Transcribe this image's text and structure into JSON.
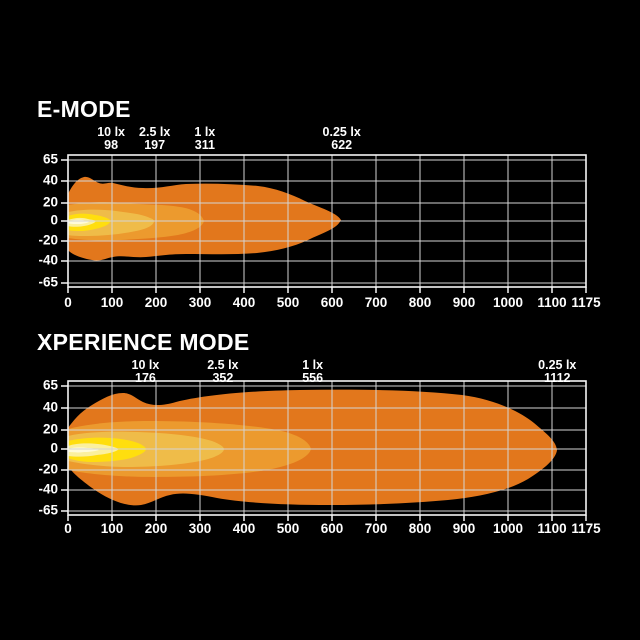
{
  "page": {
    "background": "#000000"
  },
  "palette": {
    "text": "#FFFFFF",
    "grid": "#D4D4D4",
    "frame": "#F5F5F5",
    "lux_0_25": "#E2771C",
    "lux_1": "#EC9A2E",
    "lux_2_5": "#EFBC49",
    "lux_10": "#FFDE0E",
    "core": "#FBF09E",
    "hotspot": "#FFFBD9"
  },
  "charts": [
    {
      "title": "E-MODE",
      "y_ticks": [
        65,
        40,
        20,
        0,
        -20,
        -40,
        -65
      ],
      "x_ticks": [
        0,
        100,
        200,
        300,
        400,
        500,
        600,
        700,
        800,
        900,
        1000,
        1100,
        1175
      ],
      "markers": [
        {
          "lux": "10 lx",
          "distance": 98
        },
        {
          "lux": "2.5 lx",
          "distance": 197
        },
        {
          "lux": "1 lx",
          "distance": 311
        },
        {
          "lux": "0.25 lx",
          "distance": 622
        }
      ]
    },
    {
      "title": "XPERIENCE MODE",
      "y_ticks": [
        65,
        40,
        20,
        0,
        -20,
        -40,
        -65
      ],
      "x_ticks": [
        0,
        100,
        200,
        300,
        400,
        500,
        600,
        700,
        800,
        900,
        1000,
        1100,
        1175
      ],
      "markers": [
        {
          "lux": "10 lx",
          "distance": 176
        },
        {
          "lux": "2.5 lx",
          "distance": 352
        },
        {
          "lux": "1 lx",
          "distance": 556
        },
        {
          "lux": "0.25 lx",
          "distance": 1112
        }
      ]
    }
  ],
  "chart_data": [
    {
      "type": "area",
      "subtype": "isolux-beam-pattern",
      "title": "E-MODE",
      "xlabel": "",
      "ylabel": "",
      "xlim": [
        0,
        1175
      ],
      "ylim": [
        -65,
        65
      ],
      "x_ticks": [
        0,
        100,
        200,
        300,
        400,
        500,
        600,
        700,
        800,
        900,
        1000,
        1100,
        1175
      ],
      "y_ticks": [
        65,
        40,
        20,
        0,
        -20,
        -40,
        -65
      ],
      "grid": true,
      "legend_position": "above-plot-at-distance",
      "series": [
        {
          "name": "10 lx",
          "reach": 98,
          "half_width": 9
        },
        {
          "name": "2.5 lx",
          "reach": 197,
          "half_width": 13
        },
        {
          "name": "1 lx",
          "reach": 311,
          "half_width": 20
        },
        {
          "name": "0.25 lx",
          "reach": 622,
          "half_width": 43
        }
      ]
    },
    {
      "type": "area",
      "subtype": "isolux-beam-pattern",
      "title": "XPERIENCE MODE",
      "xlabel": "",
      "ylabel": "",
      "xlim": [
        0,
        1175
      ],
      "ylim": [
        -65,
        65
      ],
      "x_ticks": [
        0,
        100,
        200,
        300,
        400,
        500,
        600,
        700,
        800,
        900,
        1000,
        1100,
        1175
      ],
      "y_ticks": [
        65,
        40,
        20,
        0,
        -20,
        -40,
        -65
      ],
      "grid": true,
      "legend_position": "above-plot-at-distance",
      "series": [
        {
          "name": "10 lx",
          "reach": 176,
          "half_width": 12
        },
        {
          "name": "2.5 lx",
          "reach": 352,
          "half_width": 18
        },
        {
          "name": "1 lx",
          "reach": 556,
          "half_width": 27
        },
        {
          "name": "0.25 lx",
          "reach": 1112,
          "half_width": 60
        }
      ]
    }
  ]
}
